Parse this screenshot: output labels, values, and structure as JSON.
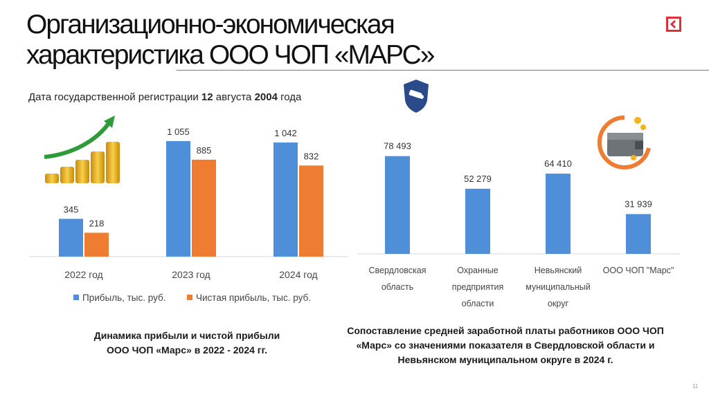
{
  "title_line1": "Организационно-экономическая",
  "title_line2": "характеристика ООО ЧОП «МАРС»",
  "registration": {
    "prefix": "Дата государственной регистрации ",
    "day": "12",
    "month": " августа ",
    "year": "2004",
    "suffix": " года"
  },
  "caption_left": {
    "line1": "Динамика прибыли и чистой прибыли",
    "line2": "ООО ЧОП «Марс» в 2022 - 2024 гг."
  },
  "caption_right": {
    "line1": "Сопоставление средней заработной платы работников ООО ЧОП",
    "line2": "«Марс» со значениями показателя в Свердловской области и",
    "line3": "Невьянском муниципальном округе в 2024 г."
  },
  "page_number": "11",
  "colors": {
    "blue": "#4f8fd9",
    "orange": "#ee7d31",
    "accent_red": "#e0303a"
  },
  "chart_data": [
    {
      "type": "bar",
      "categories": [
        "2022 год",
        "2023 год",
        "2024 год"
      ],
      "series": [
        {
          "name": "Прибыль, тыс. руб.",
          "values": [
            345,
            1055,
            1042
          ],
          "labels": [
            "345",
            "1 055",
            "1 042"
          ],
          "color": "#4f8fd9"
        },
        {
          "name": "Чистая прибыль, тыс. руб.",
          "values": [
            218,
            885,
            832
          ],
          "labels": [
            "218",
            "885",
            "832"
          ],
          "color": "#ee7d31"
        }
      ],
      "ylim": [
        0,
        1200
      ],
      "legend_position": "bottom"
    },
    {
      "type": "bar",
      "categories": [
        [
          "Свердловская",
          "область"
        ],
        [
          "Охранные",
          "предприятия",
          "области"
        ],
        [
          "Невьянский",
          "муниципальный",
          "округ"
        ],
        [
          "ООО ЧОП \"Марс\""
        ]
      ],
      "values": [
        78493,
        52279,
        64410,
        31939
      ],
      "labels": [
        "78 493",
        "52 279",
        "64 410",
        "31 939"
      ],
      "color": "#4f8fd9",
      "ylim": [
        0,
        100000
      ]
    }
  ]
}
